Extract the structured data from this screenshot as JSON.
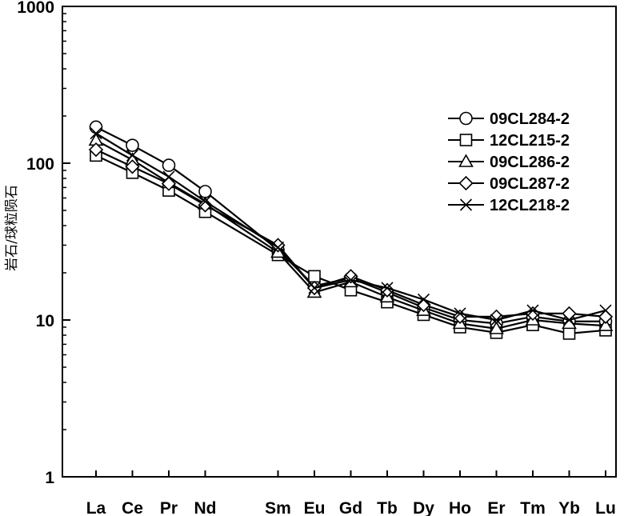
{
  "chart_data": {
    "type": "line",
    "yscale": "log",
    "ylim": [
      1,
      1000
    ],
    "yticks": [
      1,
      10,
      100,
      1000
    ],
    "ytick_labels": [
      "1",
      "10",
      "100",
      "1000"
    ],
    "ylabel": "岩石/球粒陨石",
    "xlabel": "",
    "title": "",
    "categories": [
      "La",
      "Ce",
      "Pr",
      "Nd",
      "Sm",
      "Eu",
      "Gd",
      "Tb",
      "Dy",
      "Ho",
      "Er",
      "Tm",
      "Yb",
      "Lu"
    ],
    "category_positions": [
      1,
      2,
      3,
      4,
      6,
      7,
      8,
      9,
      10,
      11,
      12,
      13,
      14,
      15
    ],
    "grid": false,
    "legend_position": "right",
    "series": [
      {
        "name": "09CL284-2",
        "marker": "circle",
        "values": [
          170,
          130,
          97,
          66,
          28,
          16.5,
          18.5,
          15,
          12,
          10,
          9.5,
          10.5,
          9.8,
          9.8
        ]
      },
      {
        "name": "12CL215-2",
        "marker": "square",
        "values": [
          112,
          87,
          67,
          49,
          26,
          19,
          15.5,
          13,
          10.8,
          9,
          8.3,
          9.3,
          8.2,
          8.6
        ]
      },
      {
        "name": "09CL286-2",
        "marker": "triangle",
        "values": [
          140,
          105,
          75,
          55,
          27,
          15,
          17.5,
          14,
          11.5,
          9.5,
          8.8,
          10,
          9.5,
          9.2
        ]
      },
      {
        "name": "09CL287-2",
        "marker": "diamond",
        "values": [
          122,
          95,
          74,
          54,
          30,
          16,
          19,
          15.5,
          12.5,
          10.5,
          10.5,
          11,
          11,
          10.5
        ]
      },
      {
        "name": "12CL218-2",
        "marker": "x",
        "values": [
          155,
          112,
          82,
          57,
          29,
          16,
          18,
          16,
          13.5,
          11,
          10,
          11.5,
          10,
          11.5
        ]
      }
    ]
  }
}
